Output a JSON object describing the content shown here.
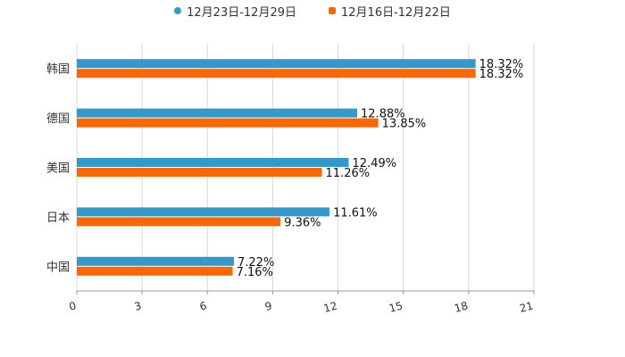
{
  "colors": {
    "series1": "#3399cc",
    "series2": "#ff6600",
    "grid": "#d9d9d9",
    "axis": "#999999"
  },
  "legend": {
    "series1_label": "12月23日-12月29日",
    "series2_label": "12月16日-12月22日"
  },
  "chart_data": {
    "type": "bar",
    "orientation": "horizontal",
    "title": "",
    "xlabel": "",
    "ylabel": "",
    "categories": [
      "韩国",
      "德国",
      "美国",
      "日本",
      "中国"
    ],
    "series": [
      {
        "name": "12月23日-12月29日",
        "values": [
          18.32,
          12.88,
          12.49,
          11.61,
          7.22
        ],
        "labels": [
          "18.32%",
          "12.88%",
          "12.49%",
          "11.61%",
          "7.22%"
        ]
      },
      {
        "name": "12月16日-12月22日",
        "values": [
          18.32,
          13.85,
          11.26,
          9.36,
          7.16
        ],
        "labels": [
          "18.32%",
          "13.85%",
          "11.26%",
          "9.36%",
          "7.16%"
        ]
      }
    ],
    "xlim": [
      0,
      21
    ],
    "xticks": [
      0,
      3,
      6,
      9,
      12,
      15,
      18,
      21
    ],
    "xtick_labels": [
      "0",
      "3",
      "6",
      "9",
      "12",
      "15",
      "18",
      "21"
    ],
    "grid": true,
    "legend_position": "top-center"
  }
}
